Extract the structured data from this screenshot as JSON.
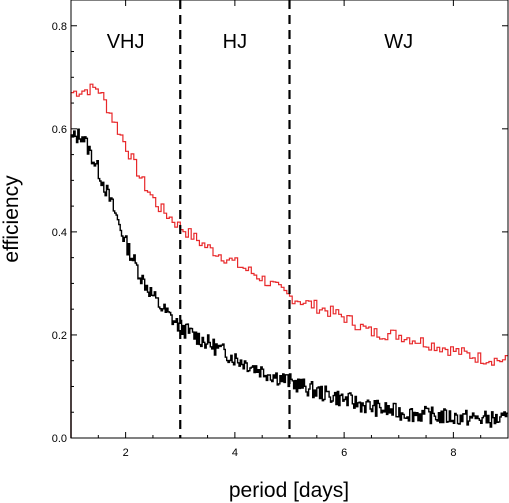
{
  "chart_data": {
    "type": "line",
    "title": "",
    "xlabel": "period [days]",
    "ylabel": "efficiency",
    "xlim": [
      1,
      9
    ],
    "ylim": [
      0,
      0.85
    ],
    "x_ticks": [
      2,
      4,
      6,
      8
    ],
    "y_ticks": [
      0.0,
      0.2,
      0.4,
      0.6,
      0.8
    ],
    "y_tick_labels": [
      "0.0",
      "0.2",
      "0.4",
      "0.6",
      "0.8"
    ],
    "grid": false,
    "legend": "none",
    "dividers": [
      3,
      5
    ],
    "regions": [
      {
        "label": "VHJ",
        "x": 2.0
      },
      {
        "label": "HJ",
        "x": 4.0
      },
      {
        "label": "WJ",
        "x": 7.0
      }
    ],
    "series": [
      {
        "color": "#e8292b",
        "step": 0.05,
        "points": [
          [
            1.0,
            0.67
          ],
          [
            1.5,
            0.68
          ],
          [
            2.0,
            0.57
          ],
          [
            2.3,
            0.5
          ],
          [
            2.6,
            0.45
          ],
          [
            3.0,
            0.41
          ],
          [
            3.5,
            0.37
          ],
          [
            4.0,
            0.34
          ],
          [
            4.5,
            0.31
          ],
          [
            5.0,
            0.275
          ],
          [
            5.5,
            0.255
          ],
          [
            6.0,
            0.235
          ],
          [
            6.5,
            0.205
          ],
          [
            7.0,
            0.2
          ],
          [
            7.5,
            0.185
          ],
          [
            8.0,
            0.17
          ],
          [
            8.5,
            0.155
          ],
          [
            9.0,
            0.15
          ]
        ],
        "noise": 0.012,
        "seed": 7
      },
      {
        "color": "#000000",
        "step": 0.025,
        "points": [
          [
            1.0,
            0.58
          ],
          [
            1.2,
            0.59
          ],
          [
            1.5,
            0.52
          ],
          [
            1.8,
            0.44
          ],
          [
            2.0,
            0.38
          ],
          [
            2.3,
            0.31
          ],
          [
            2.6,
            0.26
          ],
          [
            3.0,
            0.215
          ],
          [
            3.5,
            0.185
          ],
          [
            4.0,
            0.155
          ],
          [
            4.5,
            0.13
          ],
          [
            5.0,
            0.11
          ],
          [
            5.5,
            0.09
          ],
          [
            6.0,
            0.075
          ],
          [
            6.5,
            0.06
          ],
          [
            7.0,
            0.05
          ],
          [
            7.5,
            0.045
          ],
          [
            8.0,
            0.04
          ],
          [
            9.0,
            0.035
          ]
        ],
        "noise": 0.016,
        "seed": 13
      }
    ]
  }
}
